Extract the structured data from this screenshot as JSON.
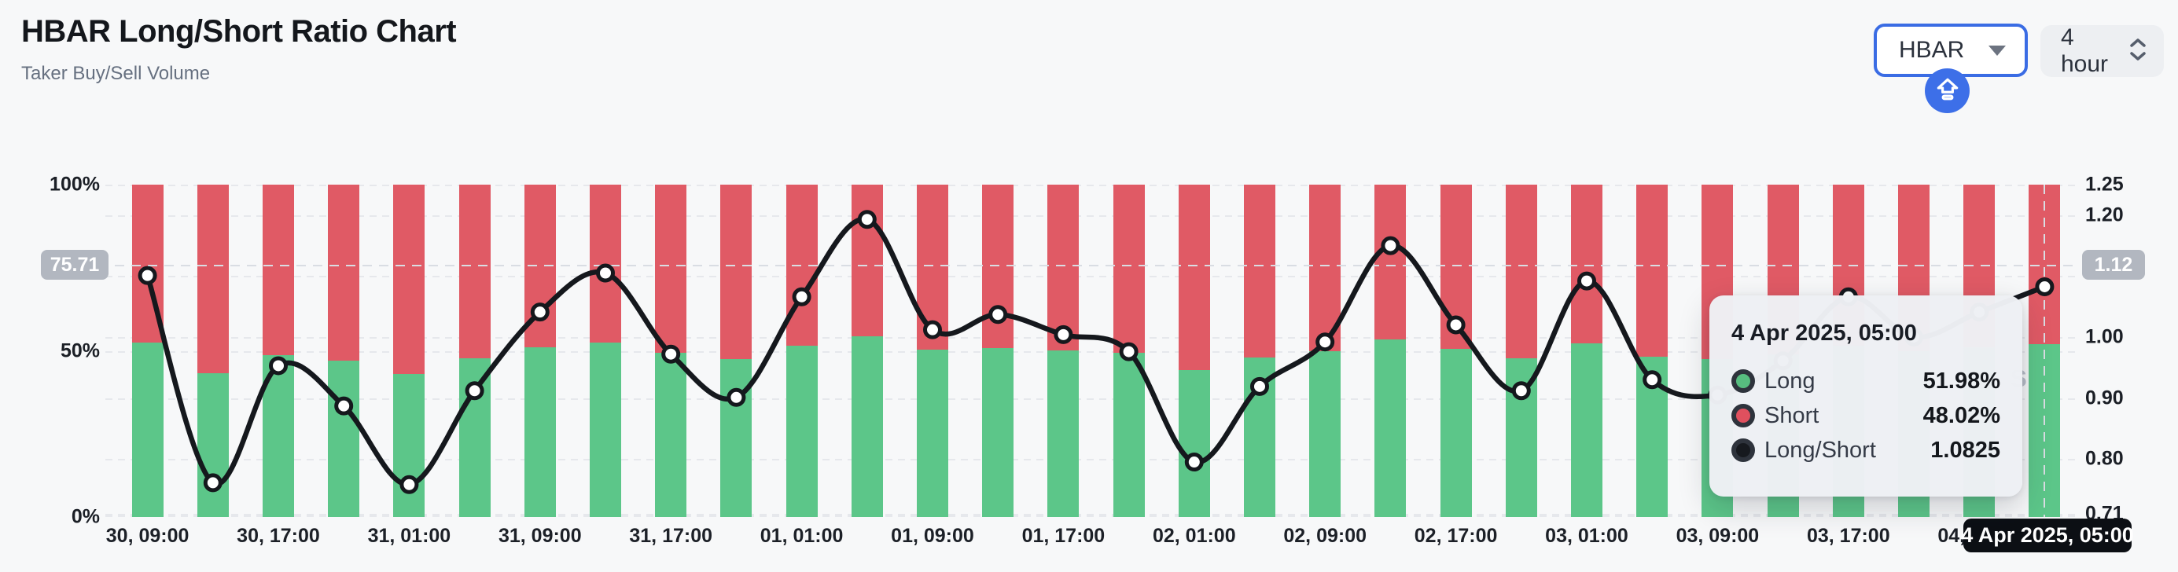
{
  "header": {
    "title": "HBAR Long/Short Ratio Chart",
    "subtitle": "Taker Buy/Sell Volume",
    "symbol_dropdown": {
      "value": "HBAR"
    },
    "interval_dropdown": {
      "value": "4 hour"
    }
  },
  "colors": {
    "long_green": "#5cc689",
    "short_red": "#e05a65",
    "line_black": "#15181d",
    "accent_blue": "#3d6fe8",
    "badge_gray": "#b2b7c0",
    "grid": "#e6e8ec"
  },
  "chart_data": {
    "type": "bar",
    "subtype": "stacked-percent-bars-with-ratio-line",
    "title": "HBAR Long/Short Ratio Chart",
    "x_tick_labels": [
      "30, 09:00",
      "30, 17:00",
      "31, 01:00",
      "31, 09:00",
      "31, 17:00",
      "01, 01:00",
      "01, 09:00",
      "01, 17:00",
      "02, 01:00",
      "02, 09:00",
      "02, 17:00",
      "03, 01:00",
      "03, 09:00",
      "03, 17:00",
      "04, 01:00"
    ],
    "bars_per_x_label": 2,
    "n_bars": 30,
    "series": [
      {
        "name": "Long",
        "type": "bar",
        "unit": "%",
        "color": "#5cc689",
        "values": [
          52.4,
          43.2,
          48.8,
          47.0,
          43.1,
          47.7,
          51.0,
          52.5,
          49.3,
          47.4,
          51.6,
          54.4,
          50.3,
          50.9,
          50.1,
          49.4,
          44.3,
          47.9,
          49.8,
          53.5,
          50.5,
          47.7,
          52.2,
          48.2,
          47.5,
          49.0,
          51.6,
          50.0,
          51.0,
          51.98
        ]
      },
      {
        "name": "Short",
        "type": "bar",
        "unit": "%",
        "color": "#e05a65",
        "values": [
          47.6,
          56.8,
          51.2,
          53.0,
          56.9,
          52.3,
          49.0,
          47.5,
          50.7,
          52.6,
          48.4,
          45.6,
          49.7,
          49.1,
          49.9,
          50.6,
          55.7,
          52.1,
          50.2,
          46.5,
          49.5,
          52.3,
          47.8,
          51.8,
          52.5,
          51.0,
          48.4,
          50.0,
          49.0,
          48.02
        ]
      },
      {
        "name": "Long/Short",
        "type": "line",
        "color": "#15181d",
        "values": [
          1.101,
          0.761,
          0.953,
          0.887,
          0.758,
          0.912,
          1.041,
          1.105,
          0.972,
          0.901,
          1.066,
          1.193,
          1.012,
          1.037,
          1.004,
          0.976,
          0.795,
          0.919,
          0.992,
          1.15,
          1.02,
          0.912,
          1.092,
          0.93,
          0.905,
          0.961,
          1.066,
          1.0,
          1.041,
          1.0825
        ]
      }
    ],
    "left_axis": {
      "tick_labels": [
        "100%",
        "50%",
        "0%"
      ],
      "tick_values": [
        100,
        50,
        0
      ],
      "range": [
        0,
        100
      ]
    },
    "right_axis": {
      "tick_labels": [
        "1.25",
        "1.20",
        "1.00",
        "0.90",
        "0.80",
        "0.71"
      ],
      "tick_values": [
        1.25,
        1.2,
        1.0,
        0.9,
        0.8,
        0.71
      ],
      "gridline_values": [
        1.25,
        1.2,
        1.1,
        1.0,
        0.9,
        0.8,
        0.71
      ],
      "range": [
        0.71,
        1.25
      ]
    },
    "legend": "none",
    "grid": "dashed-horizontal"
  },
  "crosshair": {
    "left_badge": "75.71",
    "right_badge": "1.12",
    "date_badge": "4 Apr 2025, 05:00",
    "hovered_bar_index": 29
  },
  "tooltip": {
    "title": "4 Apr 2025, 05:00",
    "rows": [
      {
        "label": "Long",
        "value": "51.98%",
        "marker_color": "#57bd7f"
      },
      {
        "label": "Short",
        "value": "48.02%",
        "marker_color": "#e0505e"
      },
      {
        "label": "Long/Short",
        "value": "1.0825",
        "marker_color": "#16191e"
      }
    ]
  },
  "watermark": {
    "text": "s"
  }
}
